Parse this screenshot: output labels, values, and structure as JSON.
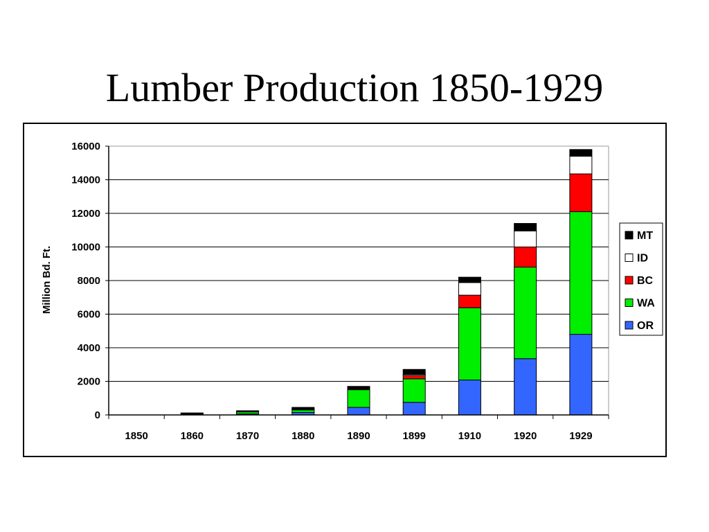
{
  "slide": {
    "title": "Lumber Production 1850-1929"
  },
  "chart_data": {
    "type": "bar",
    "stacked": true,
    "title": "",
    "xlabel": "",
    "ylabel": "Million Bd. Ft.",
    "ylim": [
      0,
      16000
    ],
    "yticks": [
      0,
      2000,
      4000,
      6000,
      8000,
      10000,
      12000,
      14000,
      16000
    ],
    "grid": true,
    "legend_position": "right",
    "categories": [
      "1850",
      "1860",
      "1870",
      "1880",
      "1890",
      "1899",
      "1910",
      "1920",
      "1929"
    ],
    "series": [
      {
        "name": "OR",
        "color": "#3366ff",
        "values": [
          0,
          30,
          60,
          150,
          450,
          750,
          2080,
          3350,
          4800
        ]
      },
      {
        "name": "WA",
        "color": "#00ee00",
        "values": [
          0,
          30,
          120,
          150,
          1050,
          1400,
          4300,
          5450,
          7300
        ]
      },
      {
        "name": "BC",
        "color": "#ff0000",
        "values": [
          0,
          10,
          20,
          40,
          50,
          200,
          750,
          1200,
          2250
        ]
      },
      {
        "name": "ID",
        "color": "#ffffff",
        "values": [
          0,
          10,
          10,
          20,
          30,
          60,
          750,
          950,
          1050
        ]
      },
      {
        "name": "MT",
        "color": "#000000",
        "values": [
          0,
          40,
          40,
          90,
          120,
          300,
          320,
          450,
          400
        ]
      }
    ],
    "legend_order": [
      "MT",
      "ID",
      "BC",
      "WA",
      "OR"
    ]
  }
}
